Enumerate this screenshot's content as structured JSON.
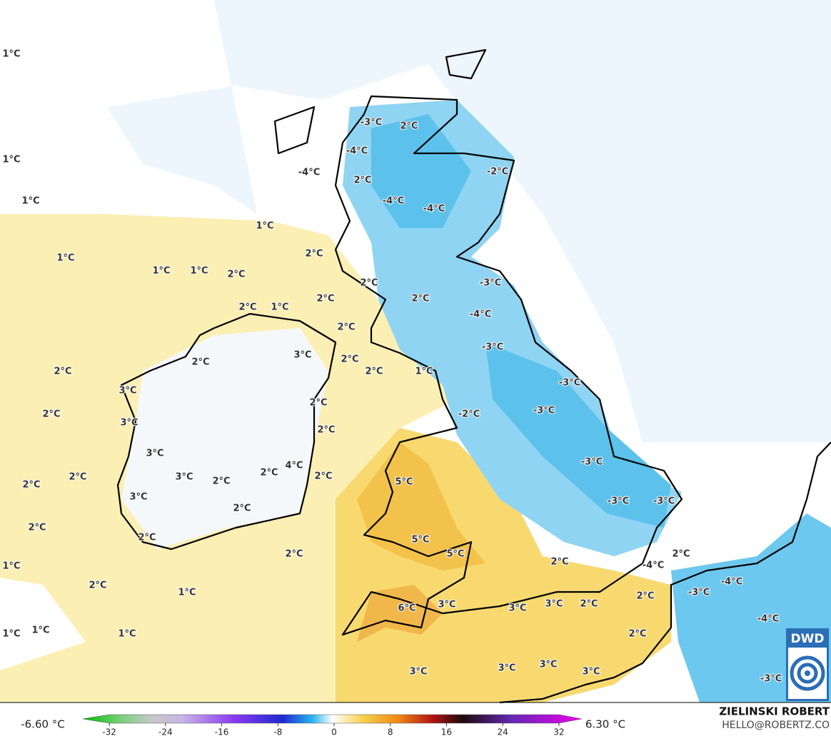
{
  "map": {
    "labels": [
      "1°C",
      "1°C",
      "1°C",
      "1°C",
      "1°C",
      "1°C",
      "1°C",
      "2°C",
      "-3°C",
      "2°C",
      "-4°C",
      "-4°C",
      "2°C",
      "-2°C",
      "-4°C",
      "-4°C",
      "2°C",
      "2°C",
      "2°C",
      "2°C",
      "-3°C",
      "-4°C",
      "2°C",
      "1°C",
      "2°C",
      "3°C",
      "2°C",
      "-3°C",
      "2°C",
      "1°C",
      "2°C",
      "2°C",
      "3°C",
      "2°C",
      "-3°C",
      "-3°C",
      "-2°C",
      "2°C",
      "3°C",
      "2°C",
      "3°C",
      "-3°C",
      "4°C",
      "3°C",
      "2°C",
      "2°C",
      "2°C",
      "2°C",
      "2°C",
      "5°C",
      "3°C",
      "-3°C",
      "-3°C",
      "2°C",
      "2°C",
      "2°C",
      "5°C",
      "5°C",
      "2°C",
      "2°C",
      "2°C",
      "-4°C",
      "1°C",
      "2°C",
      "1°C",
      "-3°C",
      "-4°C",
      "2°C",
      "2°C",
      "3°C",
      "3°C",
      "3°C",
      "6°C",
      "-4°C",
      "1°C",
      "1°C",
      "1°C",
      "2°C",
      "3°C",
      "3°C",
      "3°C",
      "3°C",
      "-3°C"
    ]
  },
  "colorbar": {
    "min_label": "-6.60 °C",
    "max_label": "6.30 °C",
    "ticks": [
      -32,
      -24,
      -16,
      -8,
      0,
      8,
      16,
      24,
      32
    ]
  },
  "credits": {
    "author": "ZIELINSKI ROBERT",
    "email": "HELLO@ROBERTZ.CO"
  },
  "logo": "DWD"
}
